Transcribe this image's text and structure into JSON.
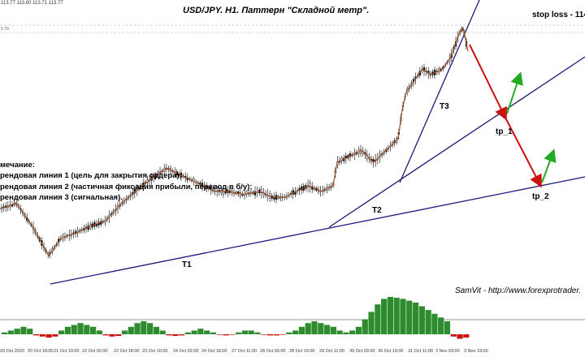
{
  "header": {
    "ohlc_text": "113.77 113.80 113.71 113.77",
    "title": "USD/JPY. H1. Паттерн \"Складной метр\".",
    "stop_loss": "stop loss - 114.",
    "price_tag": "5.70"
  },
  "notes": {
    "heading": "мечание:",
    "line1": "рендовая линия 1 (цель для закрытия ордера);",
    "line2": "рендовая линия 2 (частичная фиксация прибыли, перевод в б/у);",
    "line3": "рендовая линия 3 (сигнальная)."
  },
  "labels": {
    "t1": "T1",
    "t2": "T2",
    "t3": "T3",
    "tp1": "tp_1",
    "tp2": "tp_2"
  },
  "credit": "SamVit - http://www.forexprotrader.",
  "colors": {
    "candles": "#000000",
    "zigzag": "#a0522d",
    "trendlines": "#1a1a7a",
    "arrow_down": "#cc1111",
    "arrow_up": "#22aa22",
    "hist_pos": "#2e8b2e",
    "hist_neg": "#cc1111",
    "dashed_level": "#c8a0a0"
  },
  "chart_data": {
    "type": "candlestick",
    "instrument": "USD/JPY",
    "timeframe": "H1",
    "x_tick_labels": [
      "20 Oct 2020",
      "20 Oct 18:00",
      "21 Oct 10:00",
      "22 Oct 02:00",
      "22 Oct 18:00",
      "23 Oct 10:00",
      "24 Oct 02:00",
      "24 Oct 18:00",
      "27 Oct 11:00",
      "28 Oct 03:00",
      "28 Oct 19:00",
      "29 Oct 11:00",
      "30 Oct 03:00",
      "30 Oct 19:00",
      "31 Oct 11:00",
      "3 Nov 03:00",
      "3 Nov 19:00"
    ],
    "price_path": [
      [
        0,
        0.66
      ],
      [
        20,
        0.64
      ],
      [
        40,
        0.72
      ],
      [
        60,
        0.82
      ],
      [
        75,
        0.76
      ],
      [
        95,
        0.74
      ],
      [
        110,
        0.72
      ],
      [
        130,
        0.7
      ],
      [
        150,
        0.64
      ],
      [
        175,
        0.58
      ],
      [
        195,
        0.54
      ],
      [
        205,
        0.52
      ],
      [
        220,
        0.54
      ],
      [
        235,
        0.56
      ],
      [
        250,
        0.58
      ],
      [
        265,
        0.6
      ],
      [
        280,
        0.6
      ],
      [
        300,
        0.61
      ],
      [
        320,
        0.6
      ],
      [
        335,
        0.62
      ],
      [
        350,
        0.62
      ],
      [
        365,
        0.6
      ],
      [
        380,
        0.58
      ],
      [
        395,
        0.6
      ],
      [
        410,
        0.58
      ],
      [
        415,
        0.5
      ],
      [
        430,
        0.48
      ],
      [
        445,
        0.46
      ],
      [
        460,
        0.5
      ],
      [
        475,
        0.46
      ],
      [
        490,
        0.42
      ],
      [
        495,
        0.32
      ],
      [
        500,
        0.26
      ],
      [
        510,
        0.22
      ],
      [
        520,
        0.18
      ],
      [
        530,
        0.2
      ],
      [
        545,
        0.18
      ],
      [
        555,
        0.14
      ],
      [
        565,
        0.06
      ],
      [
        570,
        0.04
      ],
      [
        576,
        0.12
      ]
    ],
    "histogram_values": [
      0.05,
      0.1,
      0.15,
      0.2,
      0.15,
      -0.1,
      -0.2,
      -0.3,
      -0.2,
      0.1,
      0.2,
      0.25,
      0.3,
      0.25,
      0.2,
      0.1,
      -0.1,
      -0.2,
      -0.15,
      0.1,
      0.2,
      0.3,
      0.35,
      0.3,
      0.2,
      0.1,
      -0.1,
      -0.15,
      -0.1,
      0.05,
      0.1,
      0.15,
      0.1,
      0.05,
      -0.05,
      -0.1,
      -0.05,
      0.05,
      0.1,
      0.1,
      0.05,
      -0.05,
      -0.1,
      -0.1,
      -0.05,
      0.05,
      0.1,
      0.2,
      0.3,
      0.35,
      0.3,
      0.25,
      0.2,
      0.1,
      0.05,
      0.1,
      0.2,
      0.4,
      0.6,
      0.8,
      0.95,
      1.0,
      0.98,
      0.95,
      0.9,
      0.85,
      0.75,
      0.65,
      0.55,
      0.45,
      0.35,
      -0.2,
      -0.4,
      -0.3
    ]
  }
}
